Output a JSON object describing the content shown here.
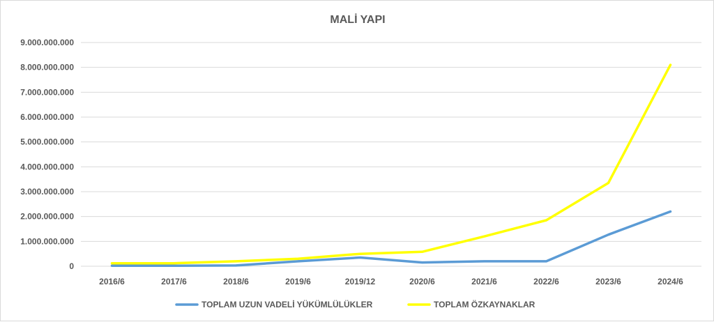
{
  "chart_data": {
    "type": "line",
    "title": "MALİ YAPI",
    "xlabel": "",
    "ylabel": "",
    "categories": [
      "2016/6",
      "2017/6",
      "2018/6",
      "2019/6",
      "2019/12",
      "2020/6",
      "2021/6",
      "2022/6",
      "2023/6",
      "2024/6"
    ],
    "ylim": [
      0,
      9000000000
    ],
    "yticks": [
      0,
      1000000000,
      2000000000,
      3000000000,
      4000000000,
      5000000000,
      6000000000,
      7000000000,
      8000000000,
      9000000000
    ],
    "ytick_labels": [
      "0",
      "1.000.000.000",
      "2.000.000.000",
      "3.000.000.000",
      "4.000.000.000",
      "5.000.000.000",
      "6.000.000.000",
      "7.000.000.000",
      "8.000.000.000",
      "9.000.000.000"
    ],
    "grid": true,
    "legend_position": "bottom",
    "series": [
      {
        "name": "TOPLAM UZUN VADELİ YÜKÜMLÜLÜKLER",
        "color": "#5b9bd5",
        "values": [
          20000000,
          20000000,
          30000000,
          200000000,
          350000000,
          150000000,
          200000000,
          200000000,
          1270000000,
          2200000000
        ]
      },
      {
        "name": "TOPLAM ÖZKAYNAKLAR",
        "color": "#ffff00",
        "values": [
          120000000,
          120000000,
          200000000,
          300000000,
          500000000,
          580000000,
          1200000000,
          1850000000,
          3350000000,
          8100000000
        ]
      }
    ]
  }
}
